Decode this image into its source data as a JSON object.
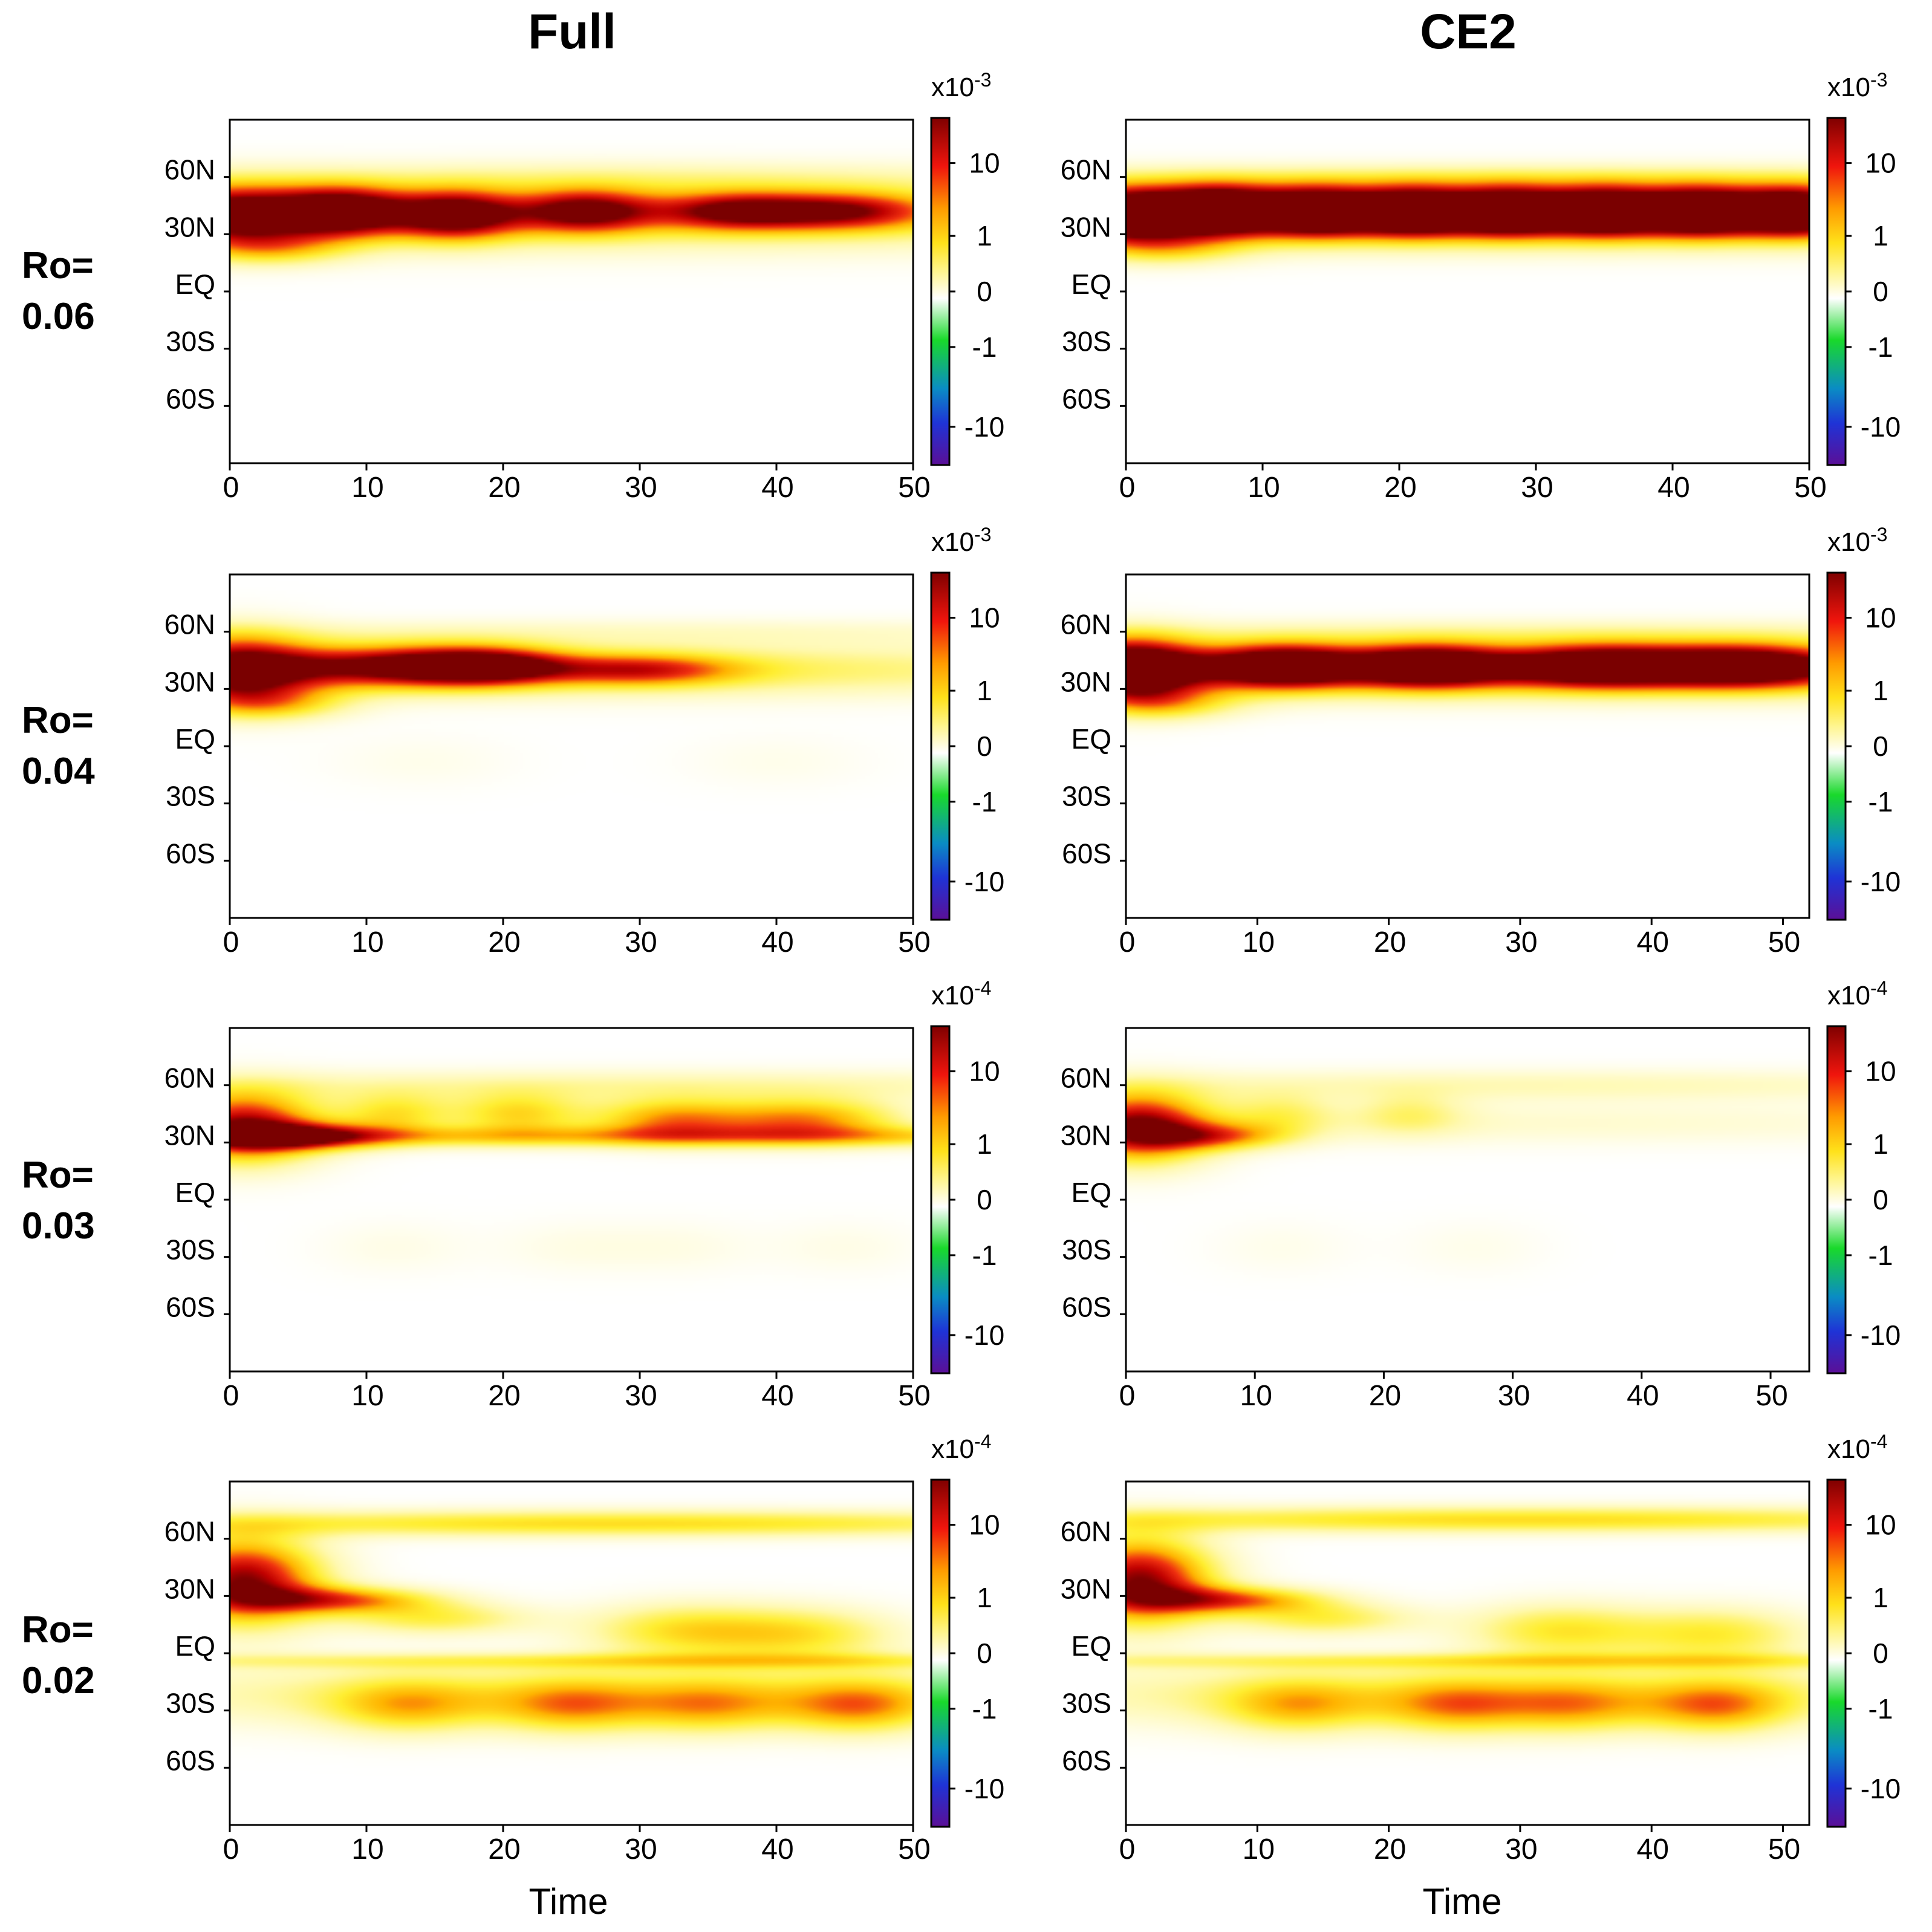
{
  "column_titles": [
    "Full",
    "CE2"
  ],
  "row_labels": [
    {
      "line1": "Ro=",
      "line2": "0.06"
    },
    {
      "line1": "Ro=",
      "line2": "0.04"
    },
    {
      "line1": "Ro=",
      "line2": "0.03"
    },
    {
      "line1": "Ro=",
      "line2": "0.02"
    }
  ],
  "xlabel": "Time",
  "colors": {
    "colormap": [
      "#5b0f97",
      "#1f33d6",
      "#0a8cc4",
      "#19d92b",
      "#ffffff",
      "#fff58c",
      "#ffe11a",
      "#ff9a00",
      "#f0150d",
      "#7f0000"
    ]
  },
  "chart_data": [
    {
      "id": "full-ro006",
      "type": "heatmap",
      "column": "Full",
      "row": "Ro=0.06",
      "xlabel": "",
      "ylabel": "",
      "xlim": [
        0,
        50
      ],
      "ylim": [
        -90,
        90
      ],
      "x_ticks": [
        0,
        10,
        20,
        30,
        40,
        50
      ],
      "y_ticks": [
        60,
        30,
        0,
        -30,
        -60
      ],
      "y_tick_labels": [
        "60N",
        "30N",
        "EQ",
        "30S",
        "60S"
      ],
      "colorbar": {
        "exponent_base": "x10",
        "exponent": "-3",
        "tick_labels": [
          "10",
          "1",
          "0",
          "-1",
          "-10"
        ]
      },
      "blobs": [
        {
          "t": 0.5,
          "lat": 40,
          "dt": 4.5,
          "dlat": 11,
          "amp": 0.92
        },
        {
          "t": 8.5,
          "lat": 42,
          "dt": 3.2,
          "dlat": 9,
          "amp": 0.84
        },
        {
          "t": 16.5,
          "lat": 40,
          "dt": 3.2,
          "dlat": 9,
          "amp": 0.84
        },
        {
          "t": 26,
          "lat": 42,
          "dt": 3.5,
          "dlat": 8,
          "amp": 0.72
        },
        {
          "t": 37,
          "lat": 42,
          "dt": 4,
          "dlat": 7,
          "amp": 0.64
        },
        {
          "t": 45,
          "lat": 42,
          "dt": 4.5,
          "dlat": 7,
          "amp": 0.62
        },
        {
          "t": 25,
          "lat": 41,
          "dt": 40,
          "dlat": 13,
          "amp": 0.44
        },
        {
          "t": 30,
          "lat": 60,
          "dt": 22,
          "dlat": 6,
          "amp": 0.12
        },
        {
          "t": 3,
          "lat": 22,
          "dt": 4,
          "dlat": 6,
          "amp": 0.32
        }
      ]
    },
    {
      "id": "ce2-ro006",
      "type": "heatmap",
      "column": "CE2",
      "row": "Ro=0.06",
      "xlabel": "",
      "ylabel": "",
      "xlim": [
        0,
        50
      ],
      "ylim": [
        -90,
        90
      ],
      "x_ticks": [
        0,
        10,
        20,
        30,
        40,
        50
      ],
      "y_ticks": [
        60,
        30,
        0,
        -30,
        -60
      ],
      "y_tick_labels": [
        "60N",
        "30N",
        "EQ",
        "30S",
        "60S"
      ],
      "colorbar": {
        "exponent_base": "x10",
        "exponent": "-3",
        "tick_labels": [
          "10",
          "1",
          "0",
          "-1",
          "-10"
        ]
      },
      "blobs": [
        {
          "t": 0.5,
          "lat": 40,
          "dt": 3.5,
          "dlat": 10,
          "amp": 0.9
        },
        {
          "t": 7,
          "lat": 43,
          "dt": 3,
          "dlat": 9,
          "amp": 0.9
        },
        {
          "t": 14,
          "lat": 42,
          "dt": 3,
          "dlat": 9,
          "amp": 0.9
        },
        {
          "t": 21,
          "lat": 42,
          "dt": 3,
          "dlat": 9,
          "amp": 0.9
        },
        {
          "t": 28,
          "lat": 42,
          "dt": 3,
          "dlat": 9,
          "amp": 0.9
        },
        {
          "t": 35,
          "lat": 42,
          "dt": 3,
          "dlat": 9,
          "amp": 0.9
        },
        {
          "t": 42,
          "lat": 42,
          "dt": 3,
          "dlat": 9,
          "amp": 0.9
        },
        {
          "t": 49,
          "lat": 42,
          "dt": 3,
          "dlat": 9,
          "amp": 0.9
        },
        {
          "t": 25,
          "lat": 41,
          "dt": 60,
          "dlat": 11,
          "amp": 0.78
        },
        {
          "t": 30,
          "lat": 60,
          "dt": 30,
          "dlat": 5,
          "amp": 0.15
        },
        {
          "t": 3,
          "lat": 22,
          "dt": 4,
          "dlat": 6,
          "amp": 0.3
        }
      ]
    },
    {
      "id": "full-ro004",
      "type": "heatmap",
      "column": "Full",
      "row": "Ro=0.04",
      "xlabel": "",
      "ylabel": "",
      "xlim": [
        0,
        50
      ],
      "ylim": [
        -90,
        90
      ],
      "x_ticks": [
        0,
        10,
        20,
        30,
        40,
        50
      ],
      "y_ticks": [
        60,
        30,
        0,
        -30,
        -60
      ],
      "y_tick_labels": [
        "60N",
        "30N",
        "EQ",
        "30S",
        "60S"
      ],
      "colorbar": {
        "exponent_base": "x10",
        "exponent": "-3",
        "tick_labels": [
          "10",
          "1",
          "0",
          "-1",
          "-10"
        ]
      },
      "blobs": [
        {
          "t": 0.5,
          "lat": 40,
          "dt": 4,
          "dlat": 13,
          "amp": 0.97
        },
        {
          "t": 12,
          "lat": 42,
          "dt": 6,
          "dlat": 8,
          "amp": 0.8
        },
        {
          "t": 19,
          "lat": 42,
          "dt": 4,
          "dlat": 7,
          "amp": 0.72
        },
        {
          "t": 30,
          "lat": 40,
          "dt": 5,
          "dlat": 6,
          "amp": 0.55
        },
        {
          "t": 30,
          "lat": 40,
          "dt": 30,
          "dlat": 10,
          "amp": 0.34
        },
        {
          "t": 30,
          "lat": 60,
          "dt": 30,
          "dlat": 5,
          "amp": 0.12
        },
        {
          "t": 14,
          "lat": -8,
          "dt": 5,
          "dlat": 10,
          "amp": 0.05
        },
        {
          "t": 40,
          "lat": -8,
          "dt": 5,
          "dlat": 10,
          "amp": 0.05
        },
        {
          "t": 3,
          "lat": 22,
          "dt": 4,
          "dlat": 6,
          "amp": 0.35
        }
      ]
    },
    {
      "id": "ce2-ro004",
      "type": "heatmap",
      "column": "CE2",
      "row": "Ro=0.04",
      "xlabel": "",
      "ylabel": "",
      "xlim": [
        0,
        52
      ],
      "ylim": [
        -90,
        90
      ],
      "x_ticks": [
        0,
        10,
        20,
        30,
        40,
        50
      ],
      "y_ticks": [
        60,
        30,
        0,
        -30,
        -60
      ],
      "y_tick_labels": [
        "60N",
        "30N",
        "EQ",
        "30S",
        "60S"
      ],
      "colorbar": {
        "exponent_base": "x10",
        "exponent": "-3",
        "tick_labels": [
          "10",
          "1",
          "0",
          "-1",
          "-10"
        ]
      },
      "blobs": [
        {
          "t": 0.5,
          "lat": 40,
          "dt": 3.5,
          "dlat": 12,
          "amp": 0.95
        },
        {
          "t": 12,
          "lat": 42,
          "dt": 4,
          "dlat": 8,
          "amp": 0.86
        },
        {
          "t": 23,
          "lat": 42,
          "dt": 4,
          "dlat": 8,
          "amp": 0.84
        },
        {
          "t": 36,
          "lat": 42,
          "dt": 5,
          "dlat": 8,
          "amp": 0.8
        },
        {
          "t": 47,
          "lat": 42,
          "dt": 5,
          "dlat": 8,
          "amp": 0.8
        },
        {
          "t": 28,
          "lat": 41,
          "dt": 60,
          "dlat": 10,
          "amp": 0.7
        },
        {
          "t": 30,
          "lat": 60,
          "dt": 30,
          "dlat": 5,
          "amp": 0.12
        },
        {
          "t": 3,
          "lat": 22,
          "dt": 4,
          "dlat": 6,
          "amp": 0.35
        }
      ]
    },
    {
      "id": "full-ro003",
      "type": "heatmap",
      "column": "Full",
      "row": "Ro=0.03",
      "xlabel": "",
      "ylabel": "",
      "xlim": [
        0,
        50
      ],
      "ylim": [
        -90,
        90
      ],
      "x_ticks": [
        0,
        10,
        20,
        30,
        40,
        50
      ],
      "y_ticks": [
        60,
        30,
        0,
        -30,
        -60
      ],
      "y_tick_labels": [
        "60N",
        "30N",
        "EQ",
        "30S",
        "60S"
      ],
      "colorbar": {
        "exponent_base": "x10",
        "exponent": "-4",
        "tick_labels": [
          "10",
          "1",
          "0",
          "-1",
          "-10"
        ]
      },
      "blobs": [
        {
          "t": 1,
          "lat": 38,
          "dt": 4,
          "dlat": 13,
          "amp": 0.97
        },
        {
          "t": 6,
          "lat": 33,
          "dt": 4,
          "dlat": 5,
          "amp": 0.55
        },
        {
          "t": 12,
          "lat": 45,
          "dt": 3,
          "dlat": 8,
          "amp": 0.4
        },
        {
          "t": 21,
          "lat": 45,
          "dt": 3.5,
          "dlat": 8,
          "amp": 0.45
        },
        {
          "t": 32,
          "lat": 42,
          "dt": 4,
          "dlat": 8,
          "amp": 0.55
        },
        {
          "t": 42,
          "lat": 42,
          "dt": 5,
          "dlat": 8,
          "amp": 0.62
        },
        {
          "t": 30,
          "lat": 33,
          "dt": 40,
          "dlat": 4,
          "amp": 0.45
        },
        {
          "t": 30,
          "lat": 60,
          "dt": 30,
          "dlat": 6,
          "amp": 0.2
        },
        {
          "t": 12,
          "lat": -25,
          "dt": 4,
          "dlat": 10,
          "amp": 0.06
        },
        {
          "t": 25,
          "lat": -25,
          "dt": 4,
          "dlat": 10,
          "amp": 0.06
        },
        {
          "t": 33,
          "lat": -25,
          "dt": 4,
          "dlat": 10,
          "amp": 0.06
        },
        {
          "t": 45,
          "lat": -25,
          "dt": 4,
          "dlat": 10,
          "amp": 0.06
        }
      ]
    },
    {
      "id": "ce2-ro003",
      "type": "heatmap",
      "column": "CE2",
      "row": "Ro=0.03",
      "xlabel": "",
      "ylabel": "",
      "xlim": [
        0,
        53
      ],
      "ylim": [
        -90,
        90
      ],
      "x_ticks": [
        0,
        10,
        20,
        30,
        40,
        50
      ],
      "y_ticks": [
        60,
        30,
        0,
        -30,
        -60
      ],
      "y_tick_labels": [
        "60N",
        "30N",
        "EQ",
        "30S",
        "60S"
      ],
      "colorbar": {
        "exponent_base": "x10",
        "exponent": "-4",
        "tick_labels": [
          "10",
          "1",
          "0",
          "-1",
          "-10"
        ]
      },
      "blobs": [
        {
          "t": 1,
          "lat": 38,
          "dt": 4,
          "dlat": 13,
          "amp": 0.97
        },
        {
          "t": 7,
          "lat": 33,
          "dt": 4,
          "dlat": 5,
          "amp": 0.5
        },
        {
          "t": 12,
          "lat": 45,
          "dt": 3,
          "dlat": 8,
          "amp": 0.25
        },
        {
          "t": 22,
          "lat": 45,
          "dt": 3,
          "dlat": 8,
          "amp": 0.22
        },
        {
          "t": 30,
          "lat": 40,
          "dt": 30,
          "dlat": 8,
          "amp": 0.12
        },
        {
          "t": 30,
          "lat": 60,
          "dt": 30,
          "dlat": 6,
          "amp": 0.18
        },
        {
          "t": 12,
          "lat": -25,
          "dt": 4,
          "dlat": 10,
          "amp": 0.05
        },
        {
          "t": 27,
          "lat": -25,
          "dt": 4,
          "dlat": 10,
          "amp": 0.05
        }
      ]
    },
    {
      "id": "full-ro002",
      "type": "heatmap",
      "column": "Full",
      "row": "Ro=0.02",
      "xlabel": "Time",
      "ylabel": "",
      "xlim": [
        0,
        50
      ],
      "ylim": [
        -90,
        90
      ],
      "x_ticks": [
        0,
        10,
        20,
        30,
        40,
        50
      ],
      "y_ticks": [
        60,
        30,
        0,
        -30,
        -60
      ],
      "y_tick_labels": [
        "60N",
        "30N",
        "EQ",
        "30S",
        "60S"
      ],
      "colorbar": {
        "exponent_base": "x10",
        "exponent": "-4",
        "tick_labels": [
          "10",
          "1",
          "0",
          "-1",
          "-10"
        ]
      },
      "blobs": [
        {
          "t": 1,
          "lat": 38,
          "dt": 4,
          "dlat": 16,
          "amp": 0.98
        },
        {
          "t": 8,
          "lat": 28,
          "dt": 5,
          "dlat": 5,
          "amp": 0.62
        },
        {
          "t": 15,
          "lat": 18,
          "dt": 5,
          "dlat": 6,
          "amp": 0.35
        },
        {
          "t": 28,
          "lat": 68,
          "dt": 28,
          "dlat": 5,
          "amp": 0.45
        },
        {
          "t": 33,
          "lat": 12,
          "dt": 5,
          "dlat": 10,
          "amp": 0.4
        },
        {
          "t": 42,
          "lat": 10,
          "dt": 5,
          "dlat": 10,
          "amp": 0.38
        },
        {
          "t": 30,
          "lat": -4,
          "dt": 30,
          "dlat": 3,
          "amp": 0.3
        },
        {
          "t": 13,
          "lat": -28,
          "dt": 4,
          "dlat": 10,
          "amp": 0.38
        },
        {
          "t": 25,
          "lat": -28,
          "dt": 4,
          "dlat": 10,
          "amp": 0.42
        },
        {
          "t": 35,
          "lat": -28,
          "dt": 4,
          "dlat": 10,
          "amp": 0.38
        },
        {
          "t": 46,
          "lat": -28,
          "dt": 4,
          "dlat": 10,
          "amp": 0.48
        },
        {
          "t": 28,
          "lat": -22,
          "dt": 30,
          "dlat": 12,
          "amp": 0.3
        }
      ]
    },
    {
      "id": "ce2-ro002",
      "type": "heatmap",
      "column": "CE2",
      "row": "Ro=0.02",
      "xlabel": "Time",
      "ylabel": "",
      "xlim": [
        0,
        52
      ],
      "ylim": [
        -90,
        90
      ],
      "x_ticks": [
        0,
        10,
        20,
        30,
        40,
        50
      ],
      "y_ticks": [
        60,
        30,
        0,
        -30,
        -60
      ],
      "y_tick_labels": [
        "60N",
        "30N",
        "EQ",
        "30S",
        "60S"
      ],
      "colorbar": {
        "exponent_base": "x10",
        "exponent": "-4",
        "tick_labels": [
          "10",
          "1",
          "0",
          "-1",
          "-10"
        ]
      },
      "blobs": [
        {
          "t": 1,
          "lat": 38,
          "dt": 4,
          "dlat": 16,
          "amp": 0.98
        },
        {
          "t": 8,
          "lat": 28,
          "dt": 5,
          "dlat": 5,
          "amp": 0.62
        },
        {
          "t": 15,
          "lat": 18,
          "dt": 5,
          "dlat": 6,
          "amp": 0.35
        },
        {
          "t": 30,
          "lat": 70,
          "dt": 30,
          "dlat": 5,
          "amp": 0.45
        },
        {
          "t": 33,
          "lat": 12,
          "dt": 5,
          "dlat": 10,
          "amp": 0.4
        },
        {
          "t": 45,
          "lat": 10,
          "dt": 5,
          "dlat": 10,
          "amp": 0.38
        },
        {
          "t": 30,
          "lat": -4,
          "dt": 30,
          "dlat": 3,
          "amp": 0.3
        },
        {
          "t": 13,
          "lat": -28,
          "dt": 4,
          "dlat": 10,
          "amp": 0.38
        },
        {
          "t": 25,
          "lat": -28,
          "dt": 4,
          "dlat": 10,
          "amp": 0.42
        },
        {
          "t": 34,
          "lat": -28,
          "dt": 4,
          "dlat": 10,
          "amp": 0.38
        },
        {
          "t": 45,
          "lat": -28,
          "dt": 4,
          "dlat": 10,
          "amp": 0.48
        },
        {
          "t": 28,
          "lat": -22,
          "dt": 30,
          "dlat": 12,
          "amp": 0.3
        }
      ]
    }
  ]
}
